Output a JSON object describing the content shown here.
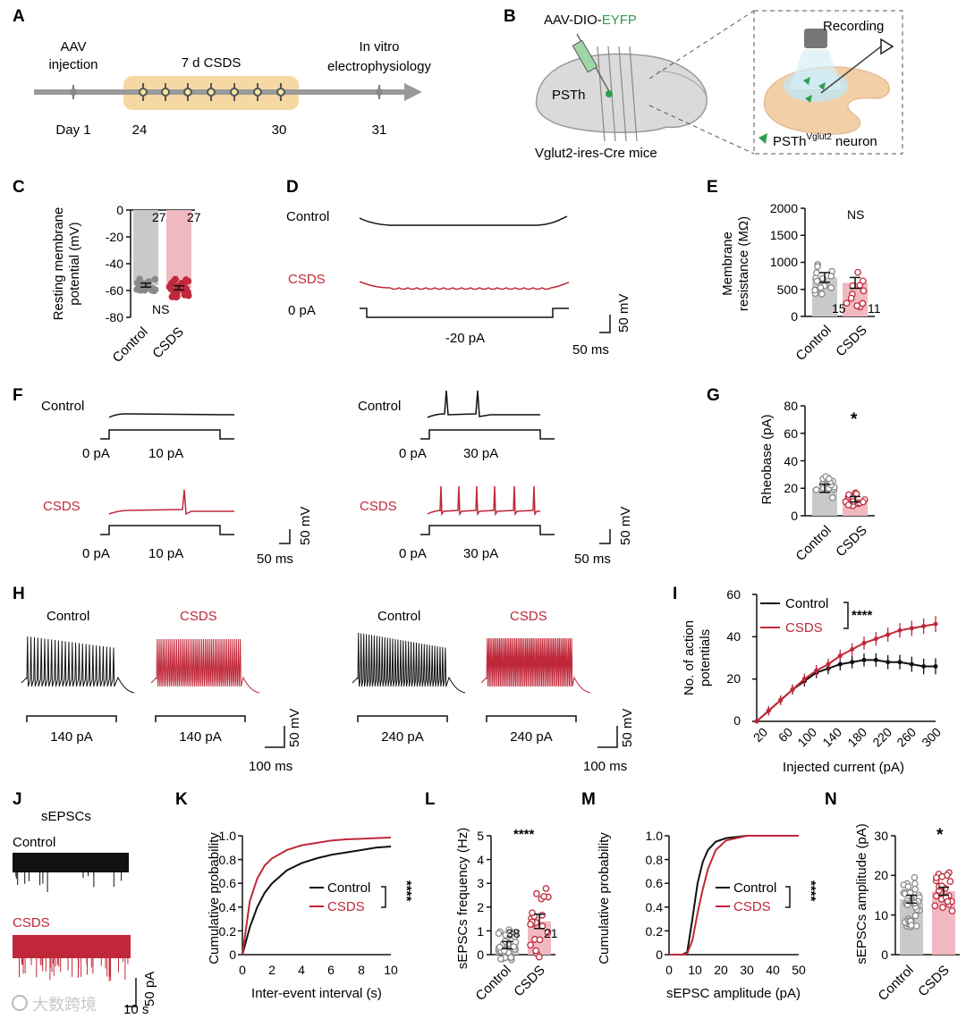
{
  "colors": {
    "control": "#111111",
    "csds": "#c0283a",
    "control_bar": "#c9c9c9",
    "csds_bar": "#f0b8c0",
    "green": "#2e9e4e",
    "timeline_band": "#f6d8a2"
  },
  "panels": {
    "A": "A",
    "B": "B",
    "C": "C",
    "D": "D",
    "E": "E",
    "F": "F",
    "G": "G",
    "H": "H",
    "I": "I",
    "J": "J",
    "K": "K",
    "L": "L",
    "M": "M",
    "N": "N"
  },
  "A": {
    "aav": "AAV",
    "injection": "injection",
    "csds": "7 d CSDS",
    "invitro": "In vitro",
    "ephys": "electrophysiology",
    "day1": "Day 1",
    "d24": "24",
    "d30": "30",
    "d31": "31"
  },
  "B": {
    "virus_prefix": "AAV-DIO-",
    "virus_suffix": "EYFP",
    "region": "PSTh",
    "mice": "Vglut2-ires-Cre mice",
    "recording": "Recording",
    "neuron_prefix": "PSTh",
    "neuron_sup": "Vglut2",
    "neuron_suffix": " neuron"
  },
  "groups": {
    "control": "Control",
    "csds": "CSDS"
  },
  "stats": {
    "ns": "NS",
    "p1": "*",
    "p4": "****"
  },
  "C": {
    "ylabel1": "Resting membrane",
    "ylabel2": "potential (mV)",
    "ticks": [
      "0",
      "-20",
      "-40",
      "-60",
      "-80"
    ],
    "n_control": "27",
    "n_csds": "27"
  },
  "D": {
    "current0": "0 pA",
    "current": "-20 pA",
    "scale_v": "50 mV",
    "scale_t": "50 ms"
  },
  "E": {
    "ylabel1": "Membrane",
    "ylabel2": "resistance (MΩ)",
    "ticks": [
      "2000",
      "1500",
      "1000",
      "500",
      "0"
    ],
    "n_control": "15",
    "n_csds": "11"
  },
  "F": {
    "zero": "0 pA",
    "c10": "10 pA",
    "c30": "30 pA",
    "scale_v": "50 mV",
    "scale_t": "50 ms"
  },
  "G": {
    "ylabel": "Rheobase (pA)",
    "ticks": [
      "80",
      "60",
      "40",
      "20",
      "0"
    ]
  },
  "H": {
    "c140": "140 pA",
    "c240": "240 pA",
    "scale_v": "50 mV",
    "scale_t": "100 ms"
  },
  "I": {
    "ylabel1": "No. of action",
    "ylabel2": "potentials",
    "xlabel": "Injected current (pA)",
    "yticks": [
      "60",
      "40",
      "20",
      "0"
    ],
    "xticks": [
      "20",
      "60",
      "100",
      "140",
      "180",
      "220",
      "260",
      "300"
    ]
  },
  "J": {
    "title": "sEPSCs",
    "scale_i": "50 pA",
    "scale_t": "10 s"
  },
  "K": {
    "ylabel": "Cumulative probability",
    "xlabel": "Inter-event interval (s)",
    "yticks": [
      "1.0",
      "0.8",
      "0.6",
      "0.4",
      "0.2",
      "0"
    ],
    "xticks": [
      "0",
      "2",
      "4",
      "6",
      "8",
      "10"
    ]
  },
  "L": {
    "ylabel": "sEPSCs  frequency (Hz)",
    "ticks": [
      "5",
      "4",
      "3",
      "2",
      "1",
      "0"
    ],
    "n_control": "38",
    "n_csds": "21"
  },
  "M": {
    "ylabel": "Cumulative probability",
    "xlabel": "sEPSC amplitude (pA)",
    "yticks": [
      "1.0",
      "0.8",
      "0.6",
      "0.4",
      "0.2",
      "0"
    ],
    "xticks": [
      "0",
      "10",
      "20",
      "30",
      "40",
      "50"
    ]
  },
  "N": {
    "ylabel": "sEPSCs  amplitude (pA)",
    "ticks": [
      "30",
      "20",
      "10",
      "0"
    ]
  },
  "watermark": "大数跨境",
  "chart_data": [
    {
      "panel": "C",
      "type": "bar",
      "categories": [
        "Control",
        "CSDS"
      ],
      "values": [
        -56,
        -58
      ],
      "ylabel": "Resting membrane potential (mV)",
      "ylim": [
        -80,
        0
      ],
      "n": [
        27,
        27
      ],
      "annotation": "NS"
    },
    {
      "panel": "E",
      "type": "bar",
      "categories": [
        "Control",
        "CSDS"
      ],
      "values": [
        720,
        620
      ],
      "ylabel": "Membrane resistance (MΩ)",
      "ylim": [
        0,
        2000
      ],
      "n": [
        15,
        11
      ],
      "annotation": "NS"
    },
    {
      "panel": "G",
      "type": "bar",
      "categories": [
        "Control",
        "CSDS"
      ],
      "values": [
        20,
        12
      ],
      "ylabel": "Rheobase (pA)",
      "ylim": [
        0,
        80
      ],
      "annotation": "*"
    },
    {
      "panel": "I",
      "type": "line",
      "x": [
        0,
        20,
        40,
        60,
        80,
        100,
        120,
        140,
        160,
        180,
        200,
        220,
        240,
        260,
        280,
        300
      ],
      "series": [
        {
          "name": "Control",
          "values": [
            0,
            5,
            10,
            15,
            19,
            23,
            25,
            27,
            28,
            29,
            29,
            28,
            28,
            27,
            26,
            26
          ]
        },
        {
          "name": "CSDS",
          "values": [
            0,
            5,
            10,
            15,
            20,
            24,
            27,
            31,
            34,
            37,
            39,
            41,
            43,
            44,
            45,
            46
          ]
        }
      ],
      "xlabel": "Injected current (pA)",
      "ylabel": "No. of action potentials",
      "xlim": [
        0,
        300
      ],
      "ylim": [
        0,
        60
      ],
      "annotation": "****"
    },
    {
      "panel": "K",
      "type": "line",
      "x": [
        0,
        0.5,
        1,
        1.5,
        2,
        3,
        4,
        5,
        6,
        7,
        8,
        9,
        10
      ],
      "series": [
        {
          "name": "Control",
          "values": [
            0,
            0.23,
            0.4,
            0.52,
            0.6,
            0.71,
            0.77,
            0.81,
            0.84,
            0.86,
            0.88,
            0.9,
            0.91
          ]
        },
        {
          "name": "CSDS",
          "values": [
            0,
            0.45,
            0.64,
            0.75,
            0.81,
            0.88,
            0.92,
            0.94,
            0.96,
            0.97,
            0.975,
            0.98,
            0.985
          ]
        }
      ],
      "xlabel": "Inter-event interval (s)",
      "ylabel": "Cumulative probability",
      "xlim": [
        0,
        10
      ],
      "ylim": [
        0,
        1
      ],
      "annotation": "****"
    },
    {
      "panel": "L",
      "type": "bar",
      "categories": [
        "Control",
        "CSDS"
      ],
      "values": [
        0.4,
        1.4
      ],
      "ylabel": "sEPSCs frequency (Hz)",
      "ylim": [
        0,
        5
      ],
      "n": [
        38,
        21
      ],
      "annotation": "****"
    },
    {
      "panel": "M",
      "type": "line",
      "x": [
        0,
        5,
        7,
        9,
        11,
        13,
        15,
        18,
        22,
        26,
        30,
        40,
        50
      ],
      "series": [
        {
          "name": "Control",
          "values": [
            0,
            0,
            0.02,
            0.3,
            0.6,
            0.78,
            0.88,
            0.95,
            0.98,
            0.99,
            1,
            1,
            1
          ]
        },
        {
          "name": "CSDS",
          "values": [
            0,
            0,
            0.01,
            0.12,
            0.35,
            0.55,
            0.72,
            0.88,
            0.96,
            0.98,
            1,
            1,
            1
          ]
        }
      ],
      "xlabel": "sEPSC amplitude (pA)",
      "ylabel": "Cumulative probability",
      "xlim": [
        0,
        50
      ],
      "ylim": [
        0,
        1
      ],
      "annotation": "****"
    },
    {
      "panel": "N",
      "type": "bar",
      "categories": [
        "Control",
        "CSDS"
      ],
      "values": [
        14,
        16
      ],
      "ylabel": "sEPSCs amplitude (pA)",
      "ylim": [
        0,
        30
      ],
      "annotation": "*"
    }
  ]
}
